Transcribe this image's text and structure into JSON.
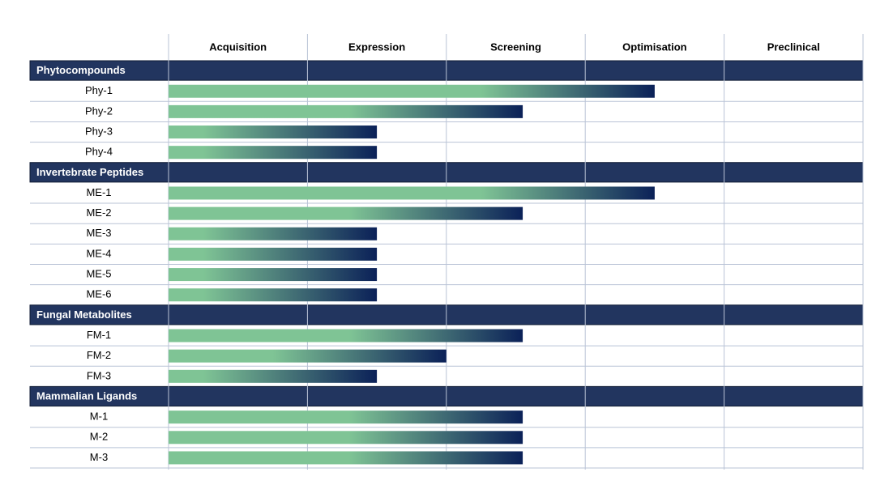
{
  "chart_data": {
    "type": "pipeline",
    "stages": [
      "Acquisition",
      "Expression",
      "Screening",
      "Optimisation",
      "Preclinical"
    ],
    "xlim": [
      0,
      5
    ],
    "colors": {
      "start": "#7fc495",
      "end": "#0b2158",
      "group_header": "#22355f"
    },
    "groups": [
      {
        "name": "Phytocompounds",
        "rows": [
          {
            "label": "Phy-1",
            "value": 3.5
          },
          {
            "label": "Phy-2",
            "value": 2.55
          },
          {
            "label": "Phy-3",
            "value": 1.5
          },
          {
            "label": "Phy-4",
            "value": 1.5
          }
        ]
      },
      {
        "name": "Invertebrate Peptides",
        "rows": [
          {
            "label": "ME-1",
            "value": 3.5
          },
          {
            "label": "ME-2",
            "value": 2.55
          },
          {
            "label": "ME-3",
            "value": 1.5
          },
          {
            "label": "ME-4",
            "value": 1.5
          },
          {
            "label": "ME-5",
            "value": 1.5
          },
          {
            "label": "ME-6",
            "value": 1.5
          }
        ]
      },
      {
        "name": "Fungal Metabolites",
        "rows": [
          {
            "label": "FM-1",
            "value": 2.55
          },
          {
            "label": "FM-2",
            "value": 2
          },
          {
            "label": "FM-3",
            "value": 1.5
          }
        ]
      },
      {
        "name": "Mammalian Ligands",
        "rows": [
          {
            "label": "M-1",
            "value": 2.55
          },
          {
            "label": "M-2",
            "value": 2.55
          },
          {
            "label": "M-3",
            "value": 2.55
          }
        ]
      }
    ]
  }
}
